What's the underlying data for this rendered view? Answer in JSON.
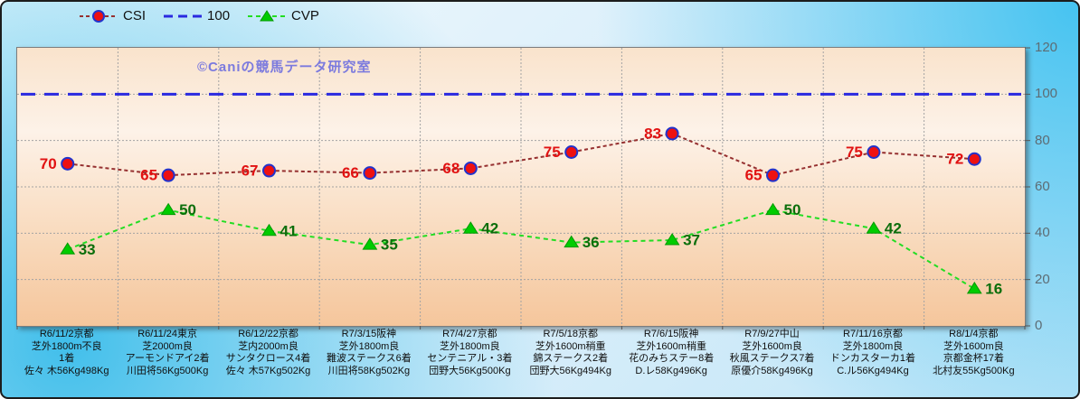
{
  "watermark": "©Caniの競馬データ研究室",
  "chart_data": {
    "type": "line",
    "title": "",
    "xlabel": "",
    "ylabel": "",
    "ylim": [
      0,
      120
    ],
    "yticks": [
      0,
      20,
      40,
      60,
      80,
      100,
      120
    ],
    "grid": true,
    "legend_position": "top",
    "series": [
      {
        "name": "CSI",
        "line_color": "#963030",
        "marker": "circle",
        "marker_fill": "#ee1111",
        "marker_stroke": "#2233cc",
        "label_color": "#e11212",
        "label_side": "left",
        "values": [
          70,
          65,
          67,
          66,
          68,
          75,
          83,
          65,
          75,
          72
        ]
      },
      {
        "name": "100",
        "baseline": true,
        "line_color": "#2a2ae0",
        "value": 100
      },
      {
        "name": "CVP",
        "line_color": "#22dd22",
        "marker": "triangle",
        "marker_fill": "#00cc00",
        "marker_stroke": "#009900",
        "label_color": "#0b6e0b",
        "label_side": "right",
        "values": [
          33,
          50,
          41,
          35,
          42,
          36,
          37,
          50,
          42,
          16
        ]
      }
    ],
    "categories": [
      [
        "R6/11/2京都",
        "芝外1800m不良",
        "1着",
        "佐々 木56Kg498Kg"
      ],
      [
        "R6/11/24東京",
        "芝2000m良",
        "アーモンドアイ2着",
        "川田将56Kg500Kg"
      ],
      [
        "R6/12/22京都",
        "芝内2000m良",
        "サンタクロース4着",
        "佐々 木57Kg502Kg"
      ],
      [
        "R7/3/15阪神",
        "芝外1800m良",
        "難波ステークス6着",
        "川田将58Kg502Kg"
      ],
      [
        "R7/4/27京都",
        "芝外1800m良",
        "センテニアル・3着",
        "団野大56Kg500Kg"
      ],
      [
        "R7/5/18京都",
        "芝外1600m稍重",
        "錦ステークス2着",
        "団野大56Kg494Kg"
      ],
      [
        "R7/6/15阪神",
        "芝外1600m稍重",
        "花のみちステー8着",
        "D.レ58Kg496Kg"
      ],
      [
        "R7/9/27中山",
        "芝外1600m良",
        "秋風ステークス7着",
        "原優介58Kg496Kg"
      ],
      [
        "R7/11/16京都",
        "芝外1800m良",
        "ドンカスターカ1着",
        "C.ル56Kg494Kg"
      ],
      [
        "R8/1/4京都",
        "芝外1600m良",
        "京都金杯17着",
        "北村友55Kg500Kg"
      ]
    ]
  }
}
